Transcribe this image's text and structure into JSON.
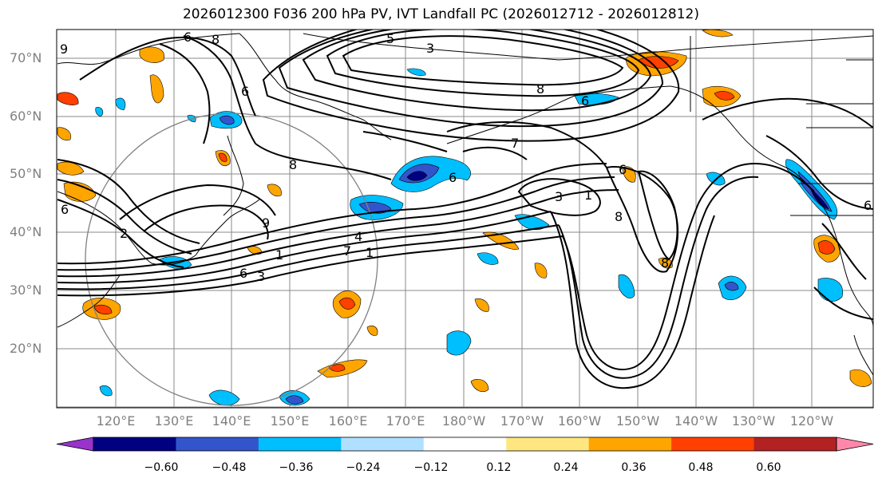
{
  "title": "2026012300 F036 200 hPa PV, IVT Landfall PC (2026012712 - 2026012812)",
  "lat_labels": [
    "70°N",
    "60°N",
    "50°N",
    "40°N",
    "30°N",
    "20°N"
  ],
  "lon_labels": [
    "120°E",
    "130°E",
    "140°E",
    "150°E",
    "160°E",
    "170°E",
    "180°W",
    "170°W",
    "160°W",
    "150°W",
    "140°W",
    "130°W",
    "120°W"
  ],
  "colorbar": {
    "labels": [
      "−0.60",
      "−0.48",
      "−0.36",
      "−0.24",
      "−0.12",
      "0.12",
      "0.24",
      "0.36",
      "0.48",
      "0.60"
    ],
    "colors": [
      "#9933cc",
      "#000080",
      "#3355cc",
      "#00bfff",
      "#b0e0ff",
      "#ffffff",
      "#ffe680",
      "#ffa500",
      "#ff4000",
      "#b22222",
      "#ff88aa"
    ]
  },
  "contour_labels": [
    "5",
    "3",
    "6",
    "8",
    "6",
    "6",
    "9",
    "8",
    "7",
    "6",
    "1",
    "3",
    "2",
    "9",
    "6",
    "8",
    "8",
    "6",
    "4",
    "7",
    "1",
    "1",
    "3",
    "6",
    "6",
    "8"
  ],
  "colors": {
    "contour": "#000000",
    "grid": "#8a8a8a",
    "circle": "#808080",
    "label": "#808080"
  }
}
